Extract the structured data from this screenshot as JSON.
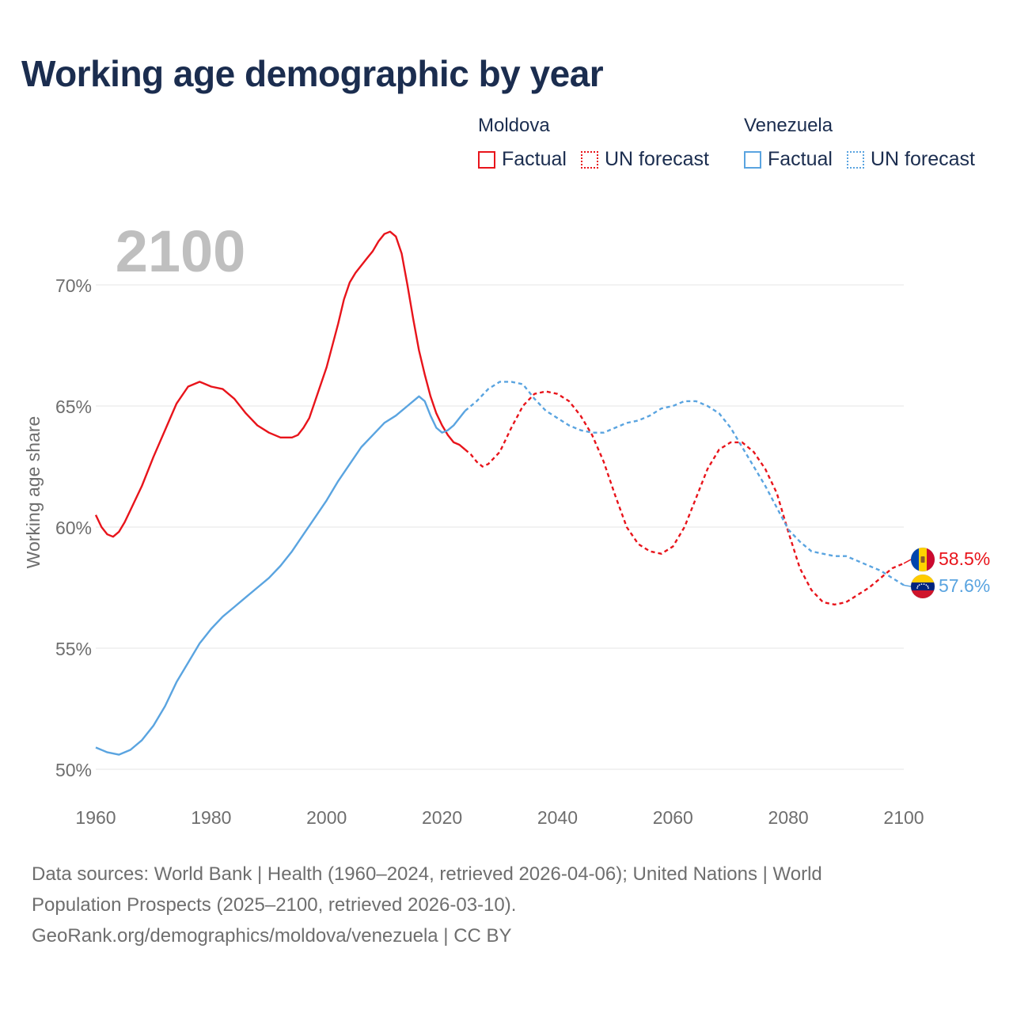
{
  "title": "Working age demographic by year",
  "legend": {
    "groups": [
      {
        "country": "Moldova",
        "factual_label": "Factual",
        "forecast_label": "UN forecast",
        "color": "#e8141b"
      },
      {
        "country": "Venezuela",
        "factual_label": "Factual",
        "forecast_label": "UN forecast",
        "color": "#5aa4e0"
      }
    ]
  },
  "footer": {
    "line1": "Data sources: World Bank | Health (1960–2024, retrieved 2026-04-06); United Nations | World",
    "line2": "Population Prospects (2025–2100, retrieved 2026-03-10).",
    "line3": "GeoRank.org/demographics/moldova/venezuela | CC BY"
  },
  "chart_data": {
    "type": "line",
    "title": "Working age demographic by year",
    "year_label": "2100",
    "xlabel": "",
    "ylabel": "Working age share",
    "xlim": [
      1960,
      2100
    ],
    "ylim": [
      50,
      72
    ],
    "xticks": [
      1960,
      1980,
      2000,
      2020,
      2040,
      2060,
      2080,
      2100
    ],
    "xtick_labels": [
      "1960",
      "1980",
      "2000",
      "2020",
      "2040",
      "2060",
      "2080",
      "2100"
    ],
    "yticks": [
      50,
      55,
      60,
      65,
      70
    ],
    "ytick_labels": [
      "50%",
      "55%",
      "60%",
      "65%",
      "70%"
    ],
    "factual_end_year": 2024,
    "series": [
      {
        "name": "Moldova",
        "color": "#e8141b",
        "end_label": "58.5%",
        "flag": "moldova-flag",
        "points": [
          [
            1960,
            60.5
          ],
          [
            1961,
            60.0
          ],
          [
            1962,
            59.7
          ],
          [
            1963,
            59.6
          ],
          [
            1964,
            59.8
          ],
          [
            1965,
            60.2
          ],
          [
            1966,
            60.7
          ],
          [
            1968,
            61.7
          ],
          [
            1970,
            62.9
          ],
          [
            1972,
            64.0
          ],
          [
            1974,
            65.1
          ],
          [
            1976,
            65.8
          ],
          [
            1978,
            66.0
          ],
          [
            1980,
            65.8
          ],
          [
            1982,
            65.7
          ],
          [
            1984,
            65.3
          ],
          [
            1986,
            64.7
          ],
          [
            1988,
            64.2
          ],
          [
            1990,
            63.9
          ],
          [
            1992,
            63.7
          ],
          [
            1994,
            63.7
          ],
          [
            1995,
            63.8
          ],
          [
            1996,
            64.1
          ],
          [
            1997,
            64.5
          ],
          [
            1998,
            65.2
          ],
          [
            2000,
            66.6
          ],
          [
            2002,
            68.4
          ],
          [
            2003,
            69.4
          ],
          [
            2004,
            70.1
          ],
          [
            2005,
            70.5
          ],
          [
            2006,
            70.8
          ],
          [
            2007,
            71.1
          ],
          [
            2008,
            71.4
          ],
          [
            2009,
            71.8
          ],
          [
            2010,
            72.1
          ],
          [
            2011,
            72.2
          ],
          [
            2012,
            72.0
          ],
          [
            2013,
            71.3
          ],
          [
            2014,
            70.0
          ],
          [
            2015,
            68.6
          ],
          [
            2016,
            67.3
          ],
          [
            2017,
            66.3
          ],
          [
            2018,
            65.4
          ],
          [
            2019,
            64.7
          ],
          [
            2020,
            64.2
          ],
          [
            2021,
            63.8
          ],
          [
            2022,
            63.5
          ],
          [
            2023,
            63.4
          ],
          [
            2024,
            63.2
          ],
          [
            2025,
            63.0
          ],
          [
            2026,
            62.7
          ],
          [
            2027,
            62.5
          ],
          [
            2028,
            62.6
          ],
          [
            2030,
            63.1
          ],
          [
            2032,
            64.1
          ],
          [
            2034,
            65.0
          ],
          [
            2036,
            65.5
          ],
          [
            2038,
            65.6
          ],
          [
            2040,
            65.5
          ],
          [
            2042,
            65.2
          ],
          [
            2044,
            64.6
          ],
          [
            2046,
            63.8
          ],
          [
            2048,
            62.7
          ],
          [
            2050,
            61.3
          ],
          [
            2052,
            60.0
          ],
          [
            2054,
            59.3
          ],
          [
            2056,
            59.0
          ],
          [
            2058,
            58.9
          ],
          [
            2060,
            59.2
          ],
          [
            2062,
            60.0
          ],
          [
            2064,
            61.2
          ],
          [
            2066,
            62.4
          ],
          [
            2068,
            63.2
          ],
          [
            2070,
            63.5
          ],
          [
            2072,
            63.5
          ],
          [
            2074,
            63.1
          ],
          [
            2076,
            62.4
          ],
          [
            2078,
            61.4
          ],
          [
            2080,
            59.8
          ],
          [
            2082,
            58.3
          ],
          [
            2084,
            57.4
          ],
          [
            2086,
            56.9
          ],
          [
            2088,
            56.8
          ],
          [
            2090,
            56.9
          ],
          [
            2092,
            57.2
          ],
          [
            2094,
            57.5
          ],
          [
            2096,
            57.9
          ],
          [
            2098,
            58.3
          ],
          [
            2100,
            58.5
          ]
        ]
      },
      {
        "name": "Venezuela",
        "color": "#5aa4e0",
        "end_label": "57.6%",
        "flag": "venezuela-flag",
        "points": [
          [
            1960,
            50.9
          ],
          [
            1962,
            50.7
          ],
          [
            1964,
            50.6
          ],
          [
            1966,
            50.8
          ],
          [
            1968,
            51.2
          ],
          [
            1970,
            51.8
          ],
          [
            1972,
            52.6
          ],
          [
            1974,
            53.6
          ],
          [
            1976,
            54.4
          ],
          [
            1978,
            55.2
          ],
          [
            1980,
            55.8
          ],
          [
            1982,
            56.3
          ],
          [
            1984,
            56.7
          ],
          [
            1986,
            57.1
          ],
          [
            1988,
            57.5
          ],
          [
            1990,
            57.9
          ],
          [
            1992,
            58.4
          ],
          [
            1994,
            59.0
          ],
          [
            1996,
            59.7
          ],
          [
            1998,
            60.4
          ],
          [
            2000,
            61.1
          ],
          [
            2002,
            61.9
          ],
          [
            2004,
            62.6
          ],
          [
            2006,
            63.3
          ],
          [
            2008,
            63.8
          ],
          [
            2010,
            64.3
          ],
          [
            2012,
            64.6
          ],
          [
            2014,
            65.0
          ],
          [
            2016,
            65.4
          ],
          [
            2017,
            65.2
          ],
          [
            2018,
            64.6
          ],
          [
            2019,
            64.1
          ],
          [
            2020,
            63.9
          ],
          [
            2021,
            64.0
          ],
          [
            2022,
            64.2
          ],
          [
            2023,
            64.5
          ],
          [
            2024,
            64.8
          ],
          [
            2026,
            65.2
          ],
          [
            2028,
            65.7
          ],
          [
            2030,
            66.0
          ],
          [
            2032,
            66.0
          ],
          [
            2034,
            65.9
          ],
          [
            2036,
            65.3
          ],
          [
            2038,
            64.8
          ],
          [
            2040,
            64.5
          ],
          [
            2042,
            64.2
          ],
          [
            2044,
            64.0
          ],
          [
            2046,
            63.9
          ],
          [
            2048,
            63.9
          ],
          [
            2050,
            64.1
          ],
          [
            2052,
            64.3
          ],
          [
            2054,
            64.4
          ],
          [
            2056,
            64.6
          ],
          [
            2058,
            64.9
          ],
          [
            2060,
            65.0
          ],
          [
            2062,
            65.2
          ],
          [
            2064,
            65.2
          ],
          [
            2066,
            65.0
          ],
          [
            2068,
            64.7
          ],
          [
            2070,
            64.1
          ],
          [
            2072,
            63.3
          ],
          [
            2074,
            62.5
          ],
          [
            2076,
            61.7
          ],
          [
            2078,
            60.8
          ],
          [
            2080,
            59.9
          ],
          [
            2082,
            59.4
          ],
          [
            2084,
            59.0
          ],
          [
            2086,
            58.9
          ],
          [
            2088,
            58.8
          ],
          [
            2090,
            58.8
          ],
          [
            2092,
            58.6
          ],
          [
            2094,
            58.4
          ],
          [
            2096,
            58.2
          ],
          [
            2098,
            57.9
          ],
          [
            2100,
            57.6
          ]
        ]
      }
    ]
  }
}
